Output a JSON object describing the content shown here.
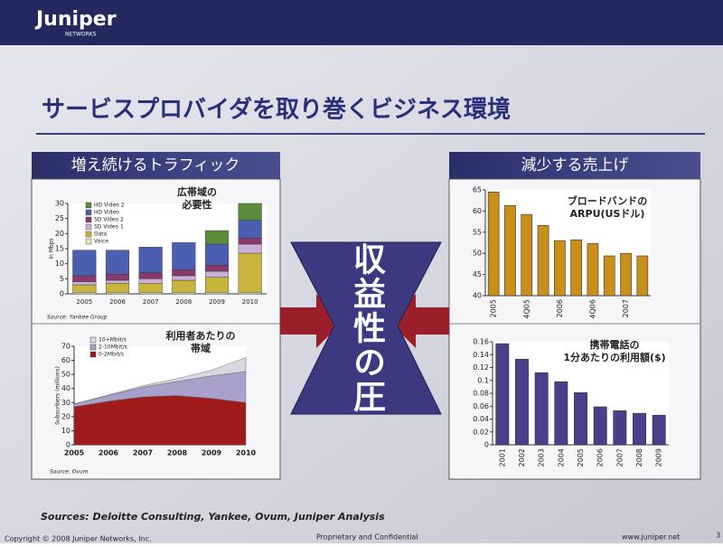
{
  "header": {
    "logo": "Juniper",
    "logo_sub": "NETWORKS"
  },
  "title": "サービスプロバイダを取り巻くビジネス環境",
  "left_panel": {
    "heading": "増え続けるトラフィック"
  },
  "right_panel": {
    "heading": "減少する売上げ"
  },
  "center_text": "収益性の圧迫",
  "sources": "Sources: Deloitte Consulting, Yankee, Ovum, Juniper Analysis",
  "footer": {
    "copyright": "Copyright © 2008 Juniper Networks, Inc.",
    "confidential": "Proprietary and Confidential",
    "url": "www.juniper.net",
    "page": "3"
  },
  "chart_data": [
    {
      "type": "stacked_bar",
      "annotation": [
        "広帯域の",
        "必要性"
      ],
      "ylabel": "in Mbps",
      "source": "Source: Yankee Group",
      "categories": [
        "2005",
        "2006",
        "2007",
        "2008",
        "2009",
        "2010"
      ],
      "series": [
        {
          "name": "HD Video 2",
          "color": "#5b8c3a",
          "values": [
            0,
            0,
            0,
            0,
            4.5,
            5.5
          ]
        },
        {
          "name": "HD Video",
          "color": "#4a5fb0",
          "values": [
            8.5,
            8,
            8.5,
            9,
            7,
            6
          ]
        },
        {
          "name": "SD Video 2",
          "color": "#8a3a6a",
          "values": [
            2,
            2,
            2,
            2,
            2,
            2
          ]
        },
        {
          "name": "SD Video 1",
          "color": "#c9b0d8",
          "values": [
            1,
            1,
            1.5,
            1.5,
            2,
            3
          ]
        },
        {
          "name": "Data",
          "color": "#c8b43a",
          "values": [
            2.5,
            3,
            3,
            4,
            5,
            13
          ]
        },
        {
          "name": "Voice",
          "color": "#e8e4c0",
          "values": [
            0.5,
            0.5,
            0.5,
            0.5,
            0.5,
            0.5
          ]
        }
      ],
      "ylim": [
        0,
        30
      ],
      "yticks": [
        0,
        5,
        10,
        15,
        20,
        25,
        30
      ]
    },
    {
      "type": "stacked_area",
      "annotation": [
        "利用者あたりの",
        "帯域"
      ],
      "ylabel": "Subscribers (millions)",
      "source": "Source: Ovum",
      "categories": [
        "2005",
        "2006",
        "2007",
        "2008",
        "2009",
        "2010"
      ],
      "series": [
        {
          "name": "10+Mbit/s",
          "color": "#d8d8e0",
          "values": [
            0,
            0.5,
            1,
            2,
            4,
            10
          ]
        },
        {
          "name": "2-10Mbit/s",
          "color": "#a9a0cc",
          "values": [
            2,
            4,
            7,
            10,
            16,
            22
          ]
        },
        {
          "name": "0-2Mbit/s",
          "color": "#a01c1c",
          "values": [
            27,
            31,
            34,
            35,
            33,
            30
          ]
        }
      ],
      "ylim": [
        0,
        70
      ],
      "yticks": [
        0,
        10,
        20,
        30,
        40,
        50,
        60,
        70
      ]
    },
    {
      "type": "bar",
      "annotation": [
        "ブロードバンドの",
        "ARPU(USドル)"
      ],
      "color": "#c8901a",
      "categories": [
        "2005",
        null,
        "4Q05",
        null,
        "2006",
        null,
        "4Q06",
        null,
        "2007",
        null
      ],
      "values": [
        64.5,
        61.3,
        59.2,
        56.6,
        53.0,
        53.2,
        52.3,
        49.4,
        50.0,
        49.4
      ],
      "ylim": [
        40,
        65
      ],
      "yticks": [
        40,
        45,
        50,
        55,
        60,
        65
      ]
    },
    {
      "type": "bar",
      "annotation": [
        "携帯電話の",
        "1分あたりの利用額($)"
      ],
      "color": "#4a3f8a",
      "categories": [
        "2001",
        "2002",
        "2003",
        "2004",
        "2005",
        "2006",
        "2007",
        "2008",
        "2009"
      ],
      "values": [
        0.157,
        0.133,
        0.112,
        0.098,
        0.081,
        0.059,
        0.053,
        0.049,
        0.046
      ],
      "ylim": [
        0,
        0.16
      ],
      "yticks": [
        0,
        0.02,
        0.04,
        0.06,
        0.08,
        0.1,
        0.12,
        0.14,
        0.16
      ]
    }
  ]
}
